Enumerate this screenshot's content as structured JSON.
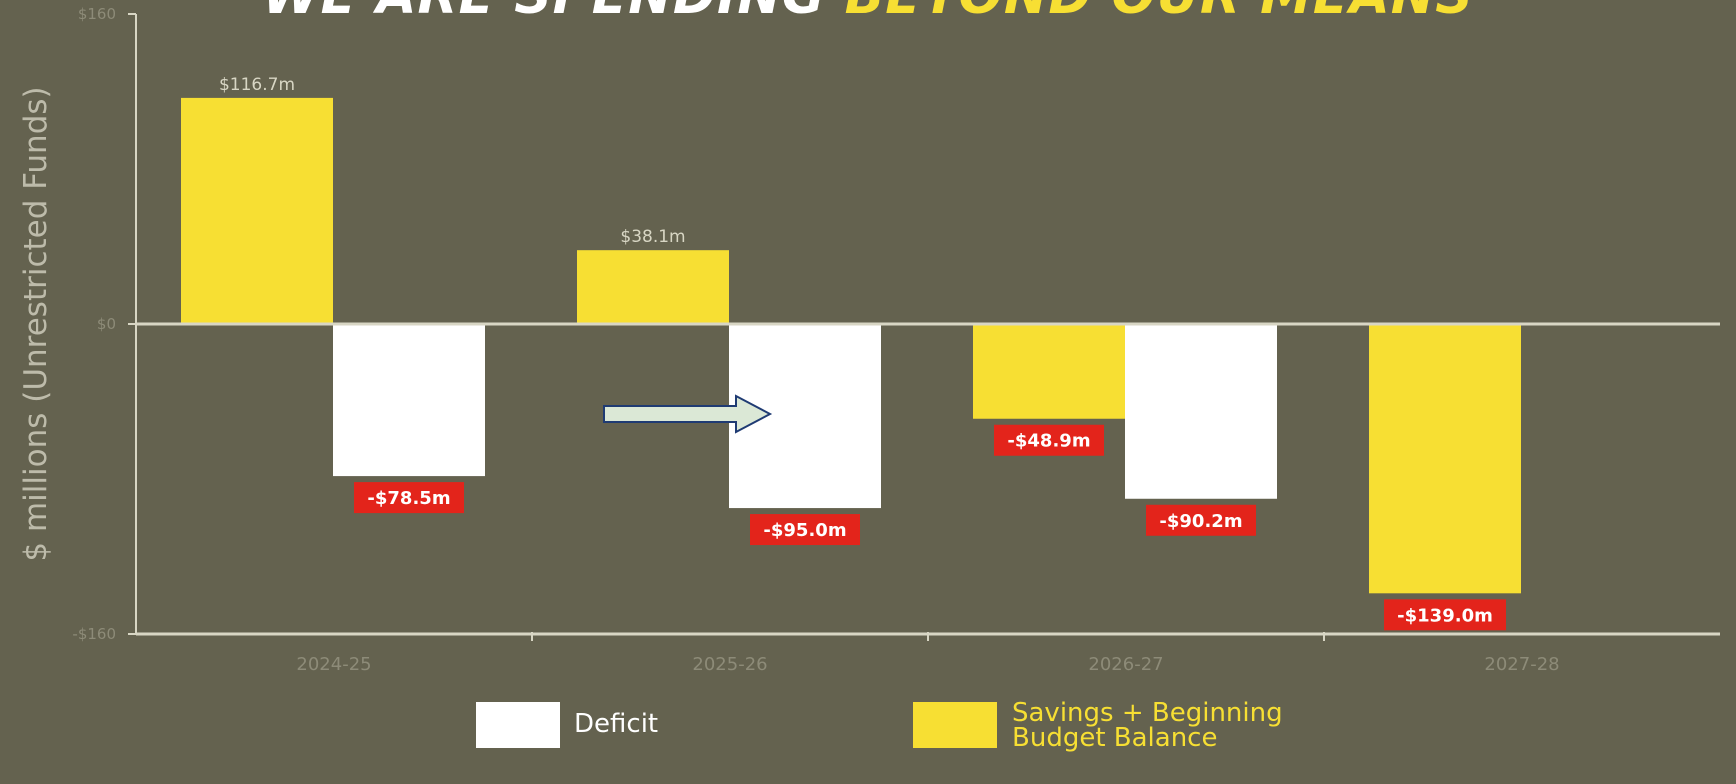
{
  "title": {
    "part1": "WE ARE SPENDING",
    "part2": "BEYOND OUR MEANS"
  },
  "chart_data": {
    "type": "bar",
    "categories": [
      "2024-25",
      "2025-26",
      "2026-27",
      "2027-28"
    ],
    "ylabel": "$ millions (Unrestricted Funds)",
    "ylim": [
      -160,
      160
    ],
    "yticks": [
      "-$160",
      "$0",
      "$160"
    ],
    "grid": false,
    "legend_position": "bottom-center",
    "series": [
      {
        "name": "Savings + Beginning Budget Balance",
        "color": "#f7df33",
        "values": [
          116.7,
          38.1,
          -48.9,
          -139.0
        ],
        "labels": [
          "$116.7m",
          "$38.1m",
          "-$48.9m",
          "-$139.0m"
        ]
      },
      {
        "name": "Deficit",
        "color": "#ffffff",
        "values": [
          -78.5,
          -95.0,
          -90.2,
          null
        ],
        "labels": [
          "-$78.5m",
          "-$95.0m",
          "-$90.2m",
          null
        ]
      }
    ]
  },
  "legend": {
    "deficit_label": "Deficit",
    "savings_label_line1": "Savings + Beginning",
    "savings_label_line2": "Budget Balance"
  },
  "colors": {
    "background": "#64624f",
    "savings": "#f7df33",
    "deficit": "#ffffff",
    "negative_label_bg": "#e3241b",
    "axis": "#d8d6c4",
    "arrow_fill": "#dbe8d6",
    "arrow_stroke": "#1f3b73"
  },
  "annotation": {
    "icon": "right-arrow-icon"
  }
}
